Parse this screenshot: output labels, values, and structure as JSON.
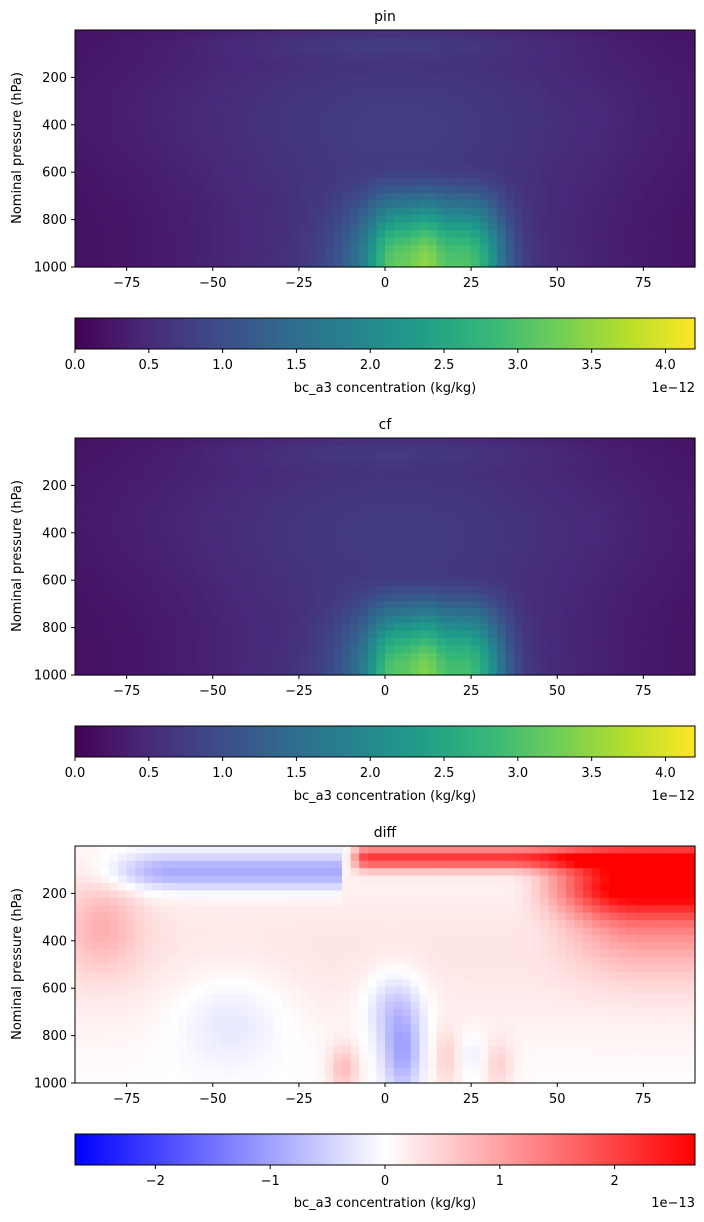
{
  "chart_data": [
    {
      "type": "heatmap",
      "title": "pin",
      "xlabel": "",
      "ylabel": "Nominal pressure (hPa)",
      "xlim": [
        -90,
        90
      ],
      "ylim": [
        1000,
        0
      ],
      "x_ticks": [
        -75,
        -50,
        -25,
        0,
        25,
        50,
        75
      ],
      "y_ticks": [
        200,
        400,
        600,
        800,
        1000
      ],
      "colormap": "viridis",
      "field": "sequential",
      "intensity": 1.0,
      "vmin": 0.0,
      "vmax": 4.2e-12,
      "colorbar": {
        "label": "bc_a3 concentration (kg/kg)",
        "ticks": [
          "0.0",
          "0.5",
          "1.0",
          "1.5",
          "2.0",
          "2.5",
          "3.0",
          "3.5",
          "4.0"
        ],
        "tick_values": [
          0.0,
          0.5,
          1.0,
          1.5,
          2.0,
          2.5,
          3.0,
          3.5,
          4.0
        ],
        "range": [
          0.0,
          4.2
        ],
        "offset_text": "1e−12",
        "colors": [
          "#440154",
          "#482878",
          "#3e4989",
          "#31688e",
          "#26828e",
          "#1f9e89",
          "#35b779",
          "#6ece58",
          "#b5de2b",
          "#fde725"
        ]
      }
    },
    {
      "type": "heatmap",
      "title": "cf",
      "xlabel": "",
      "ylabel": "Nominal pressure (hPa)",
      "xlim": [
        -90,
        90
      ],
      "ylim": [
        1000,
        0
      ],
      "x_ticks": [
        -75,
        -50,
        -25,
        0,
        25,
        50,
        75
      ],
      "y_ticks": [
        200,
        400,
        600,
        800,
        1000
      ],
      "colormap": "viridis",
      "field": "sequential",
      "intensity": 0.97,
      "vmin": 0.0,
      "vmax": 4.2e-12,
      "colorbar": {
        "label": "bc_a3 concentration (kg/kg)",
        "ticks": [
          "0.0",
          "0.5",
          "1.0",
          "1.5",
          "2.0",
          "2.5",
          "3.0",
          "3.5",
          "4.0"
        ],
        "tick_values": [
          0.0,
          0.5,
          1.0,
          1.5,
          2.0,
          2.5,
          3.0,
          3.5,
          4.0
        ],
        "range": [
          0.0,
          4.2
        ],
        "offset_text": "1e−12",
        "colors": [
          "#440154",
          "#482878",
          "#3e4989",
          "#31688e",
          "#26828e",
          "#1f9e89",
          "#35b779",
          "#6ece58",
          "#b5de2b",
          "#fde725"
        ]
      }
    },
    {
      "type": "heatmap",
      "title": "diff",
      "xlabel": "",
      "ylabel": "Nominal pressure (hPa)",
      "xlim": [
        -90,
        90
      ],
      "ylim": [
        1000,
        0
      ],
      "x_ticks": [
        -75,
        -50,
        -25,
        0,
        25,
        50,
        75
      ],
      "y_ticks": [
        200,
        400,
        600,
        800,
        1000
      ],
      "colormap": "bwr",
      "field": "diverging",
      "vmin": -2.7e-13,
      "vmax": 2.7e-13,
      "colorbar": {
        "label": "bc_a3 concentration (kg/kg)",
        "ticks": [
          "−2",
          "−1",
          "0",
          "1",
          "2"
        ],
        "tick_values": [
          -2,
          -1,
          0,
          1,
          2
        ],
        "range": [
          -2.7,
          2.7
        ],
        "offset_text": "1e−13",
        "colors": [
          "#0000ff",
          "#ffffff",
          "#ff0000"
        ]
      }
    }
  ]
}
